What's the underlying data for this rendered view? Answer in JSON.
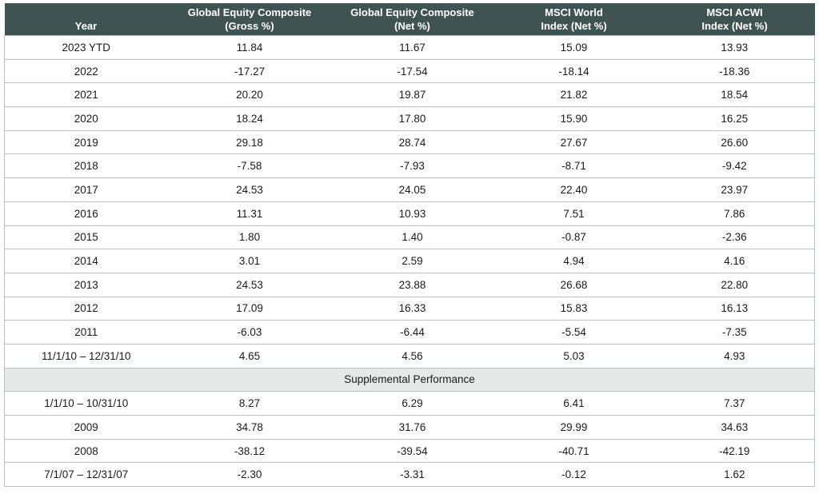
{
  "table": {
    "headers": [
      {
        "line1": "",
        "line2": "Year"
      },
      {
        "line1": "Global Equity Composite",
        "line2": "(Gross %)"
      },
      {
        "line1": "Global Equity Composite",
        "line2": "(Net %)"
      },
      {
        "line1": "MSCI World",
        "line2": "Index (Net %)"
      },
      {
        "line1": "MSCI ACWI",
        "line2": "Index (Net %)"
      }
    ],
    "rows": [
      [
        "2023 YTD",
        "11.84",
        "11.67",
        "15.09",
        "13.93"
      ],
      [
        "2022",
        "-17.27",
        "-17.54",
        "-18.14",
        "-18.36"
      ],
      [
        "2021",
        "20.20",
        "19.87",
        "21.82",
        "18.54"
      ],
      [
        "2020",
        "18.24",
        "17.80",
        "15.90",
        "16.25"
      ],
      [
        "2019",
        "29.18",
        "28.74",
        "27.67",
        "26.60"
      ],
      [
        "2018",
        "-7.58",
        "-7.93",
        "-8.71",
        "-9.42"
      ],
      [
        "2017",
        "24.53",
        "24.05",
        "22.40",
        "23.97"
      ],
      [
        "2016",
        "11.31",
        "10.93",
        "7.51",
        "7.86"
      ],
      [
        "2015",
        "1.80",
        "1.40",
        "-0.87",
        "-2.36"
      ],
      [
        "2014",
        "3.01",
        "2.59",
        "4.94",
        "4.16"
      ],
      [
        "2013",
        "24.53",
        "23.88",
        "26.68",
        "22.80"
      ],
      [
        "2012",
        "17.09",
        "16.33",
        "15.83",
        "16.13"
      ],
      [
        "2011",
        "-6.03",
        "-6.44",
        "-5.54",
        "-7.35"
      ],
      [
        "11/1/10 – 12/31/10",
        "4.65",
        "4.56",
        "5.03",
        "4.93"
      ]
    ],
    "supplemental_label": "Supplemental Performance",
    "supplemental_rows": [
      [
        "1/1/10 – 10/31/10",
        "8.27",
        "6.29",
        "6.41",
        "7.37"
      ],
      [
        "2009",
        "34.78",
        "31.76",
        "29.99",
        "34.63"
      ],
      [
        "2008",
        "-38.12",
        "-39.54",
        "-40.71",
        "-42.19"
      ],
      [
        "7/1/07 – 12/31/07",
        "-2.30",
        "-3.31",
        "-0.12",
        "1.62"
      ]
    ]
  },
  "colors": {
    "header_bg": "#3f5352",
    "header_text": "#ffffff",
    "supplemental_bg": "#e7e9e9",
    "grid_line": "#b9bfbf"
  }
}
